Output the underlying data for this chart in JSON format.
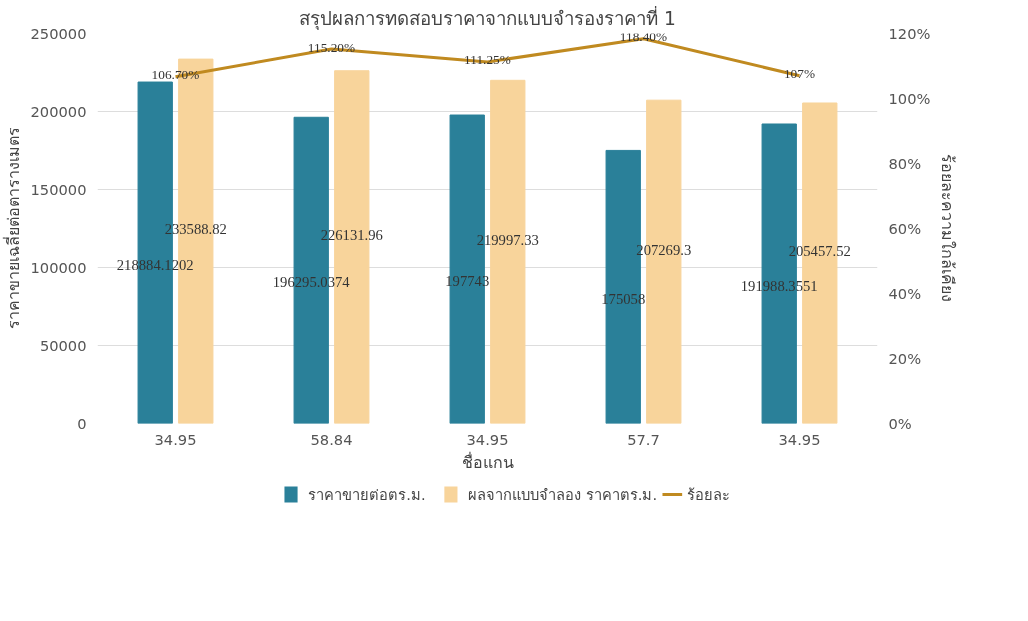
{
  "chart_data": {
    "type": "bar",
    "title": "สรุปผลการทดสอบราคาจากแบบจำรองราคาที่ 1",
    "xlabel": "ชื่อแกน",
    "ylabel": "ราคาขายเฉลี่ยต่อตารางเมตร",
    "y2label": "ร้อยละความใกล้เคียง",
    "categories": [
      "34.95",
      "58.84",
      "34.95",
      "57.7",
      "34.95"
    ],
    "series": [
      {
        "name": "ราคาขายต่อตร.ม.",
        "color": "#2a8099",
        "values": [
          218884.1202,
          196295.0374,
          197743,
          175058,
          191988.3551
        ]
      },
      {
        "name": "ผลจากแบบจำลอง ราคาตร.ม.",
        "color": "#f8d49b",
        "values": [
          233588.82,
          226131.96,
          219997.33,
          207269.3,
          205457.52
        ]
      },
      {
        "name": "ร้อยละ",
        "type": "line",
        "axis": "y2",
        "color": "#c08a20",
        "values": [
          106.7,
          115.2,
          111.25,
          118.4,
          107
        ],
        "value_labels": [
          "106.70%",
          "115.20%",
          "111.25%",
          "118.40%",
          "107%"
        ]
      }
    ],
    "data_labels": true,
    "ylim": [
      0,
      250000
    ],
    "yticks": [
      0,
      50000,
      100000,
      150000,
      200000,
      250000
    ],
    "y2lim": [
      0,
      120
    ],
    "y2ticks": [
      {
        "value": 0,
        "label": "0%"
      },
      {
        "value": 20,
        "label": "20%"
      },
      {
        "value": 40,
        "label": "40%"
      },
      {
        "value": 60,
        "label": "60%"
      },
      {
        "value": 80,
        "label": "80%"
      },
      {
        "value": 100,
        "label": "100%"
      },
      {
        "value": 120,
        "label": "120%"
      }
    ],
    "grid": "y",
    "legend": "bottom"
  }
}
